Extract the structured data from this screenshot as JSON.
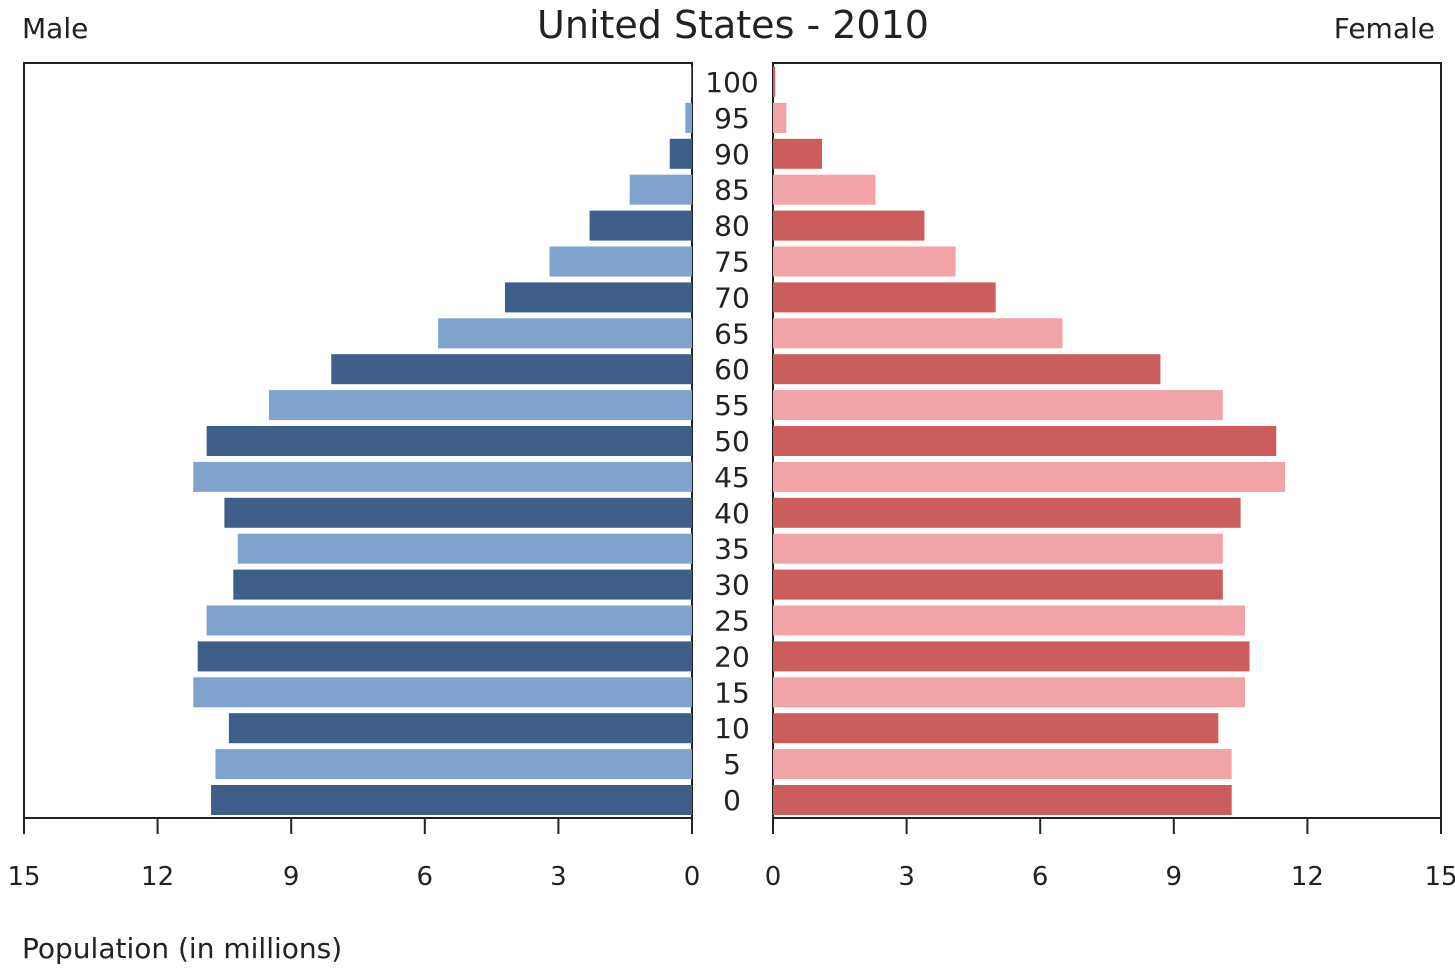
{
  "chart_data": {
    "type": "bar",
    "title": "United States - 2010",
    "left_label": "Male",
    "right_label": "Female",
    "xlabel": "Population (in millions)",
    "xlim": [
      0,
      15
    ],
    "x_ticks": [
      "0",
      "3",
      "6",
      "9",
      "12",
      "15"
    ],
    "categories": [
      "0",
      "5",
      "10",
      "15",
      "20",
      "25",
      "30",
      "35",
      "40",
      "45",
      "50",
      "55",
      "60",
      "65",
      "70",
      "75",
      "80",
      "85",
      "90",
      "95",
      "100"
    ],
    "series": [
      {
        "name": "Male",
        "values": [
          10.8,
          10.7,
          10.4,
          11.2,
          11.1,
          10.9,
          10.3,
          10.2,
          10.5,
          11.2,
          10.9,
          9.5,
          8.1,
          5.7,
          4.2,
          3.2,
          2.3,
          1.4,
          0.5,
          0.15,
          0.02
        ],
        "colors": [
          "#3e5f8a",
          "#7fa3cc"
        ]
      },
      {
        "name": "Female",
        "values": [
          10.3,
          10.3,
          10.0,
          10.6,
          10.7,
          10.6,
          10.1,
          10.1,
          10.5,
          11.5,
          11.3,
          10.1,
          8.7,
          6.5,
          5.0,
          4.1,
          3.4,
          2.3,
          1.1,
          0.3,
          0.05
        ],
        "colors": [
          "#cd5c5c",
          "#f2a3a7"
        ]
      }
    ],
    "grid": false,
    "legend": "none"
  }
}
